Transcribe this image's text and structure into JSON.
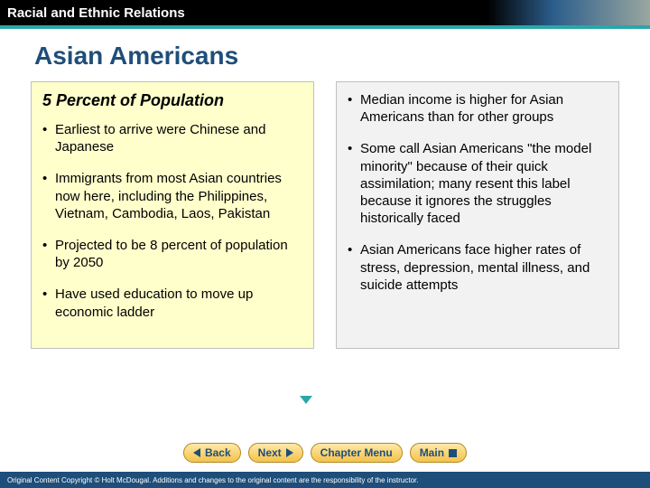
{
  "header": {
    "chapter_title": "Racial and Ethnic Relations"
  },
  "slide": {
    "title": "Asian Americans"
  },
  "left": {
    "subhead": "5 Percent of Population",
    "bullets": [
      "Earliest to arrive were Chinese and Japanese",
      "Immigrants from most Asian countries now here, including the Philippines, Vietnam, Cambodia, Laos, Pakistan",
      "Projected to be 8 percent of population by 2050",
      "Have used education to move up economic ladder"
    ]
  },
  "right": {
    "bullets": [
      "Median income is higher for Asian Americans than for other groups",
      "Some call Asian Americans \"the model minority\" because of their quick assimilation; many resent this label because it ignores the struggles historically faced",
      "Asian Americans face higher rates of stress, depression, mental illness, and suicide attempts"
    ]
  },
  "nav": {
    "back": "Back",
    "next": "Next",
    "chapter_menu": "Chapter Menu",
    "main": "Main"
  },
  "footer": {
    "copyright": "Original Content Copyright © Holt McDougal. Additions and changes to the original content are the responsibility of the instructor."
  },
  "colors": {
    "header_bg": "#000000",
    "accent_stripe": "#2aa7a7",
    "title_color": "#1e4e7a",
    "left_panel_bg": "#ffffcc",
    "right_panel_bg": "#f2f2f2",
    "nav_btn_bg_top": "#ffe9a8",
    "nav_btn_bg_bottom": "#f5c24b",
    "nav_btn_border": "#b0891f",
    "footer_bg": "#1e4e7a"
  }
}
